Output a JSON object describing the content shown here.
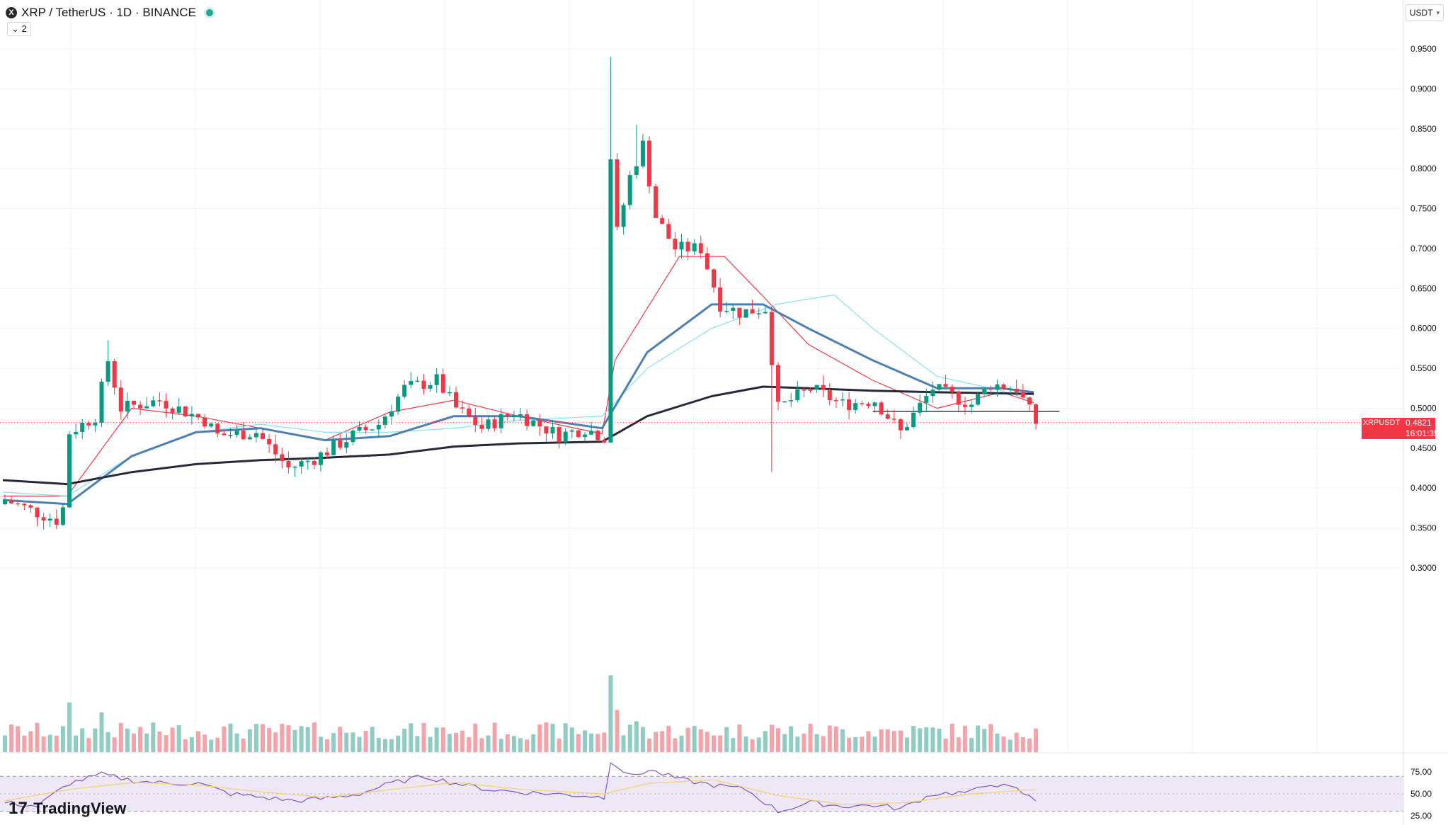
{
  "header": {
    "symbol_logo": "X",
    "title": "XRP / TetherUS · 1D · BINANCE",
    "status_color": "#26a69a",
    "indicator_count": "2"
  },
  "currency_button": {
    "label": "USDT",
    "icon": "chevron-down-icon"
  },
  "price_tag": {
    "symbol": "XRPUSDT",
    "price": "0.4821",
    "countdown": "16:01:35",
    "color": "#f23645"
  },
  "watermark": {
    "text": "TradingView",
    "icon": "tradingview-logo-icon"
  },
  "colors": {
    "up": "#089981",
    "down": "#f23645",
    "vol_up": "#8fcdc2",
    "vol_down": "#f5a3a8",
    "ma_red": "#f23645",
    "ma_cyan": "#7fe3ec",
    "ma_blue": "#4a80b3",
    "ma_black": "#252a3a",
    "rsi_line": "#7e57c2",
    "rsi_ma": "#f7d264",
    "rsi_band": "#ede7f6"
  },
  "chart_data": {
    "type": "candlestick",
    "price_axis": {
      "ticks": [
        "0.9500",
        "0.9000",
        "0.8500",
        "0.8000",
        "0.7500",
        "0.7000",
        "0.6500",
        "0.6000",
        "0.5500",
        "0.5000",
        "0.4500",
        "0.4000",
        "0.3500",
        "0.3000"
      ],
      "min": 0.3,
      "max": 0.95
    },
    "rsi_axis": {
      "ticks": [
        "75.00",
        "50.00",
        "25.00"
      ],
      "upper": 70,
      "lower": 30,
      "mid": 50
    },
    "horizontal_line": 0.496,
    "current_price": 0.4821,
    "anchors": [
      {
        "i": 0,
        "p": 0.385
      },
      {
        "i": 8,
        "p": 0.36
      },
      {
        "i": 9,
        "p": 0.375
      },
      {
        "i": 10,
        "p": 0.47
      },
      {
        "i": 14,
        "p": 0.49
      },
      {
        "i": 16,
        "p": 0.56
      },
      {
        "i": 18,
        "p": 0.5
      },
      {
        "i": 24,
        "p": 0.51
      },
      {
        "i": 31,
        "p": 0.485
      },
      {
        "i": 33,
        "p": 0.466
      },
      {
        "i": 39,
        "p": 0.47
      },
      {
        "i": 44,
        "p": 0.425
      },
      {
        "i": 48,
        "p": 0.437
      },
      {
        "i": 54,
        "p": 0.466
      },
      {
        "i": 58,
        "p": 0.48
      },
      {
        "i": 62,
        "p": 0.525
      },
      {
        "i": 67,
        "p": 0.535
      },
      {
        "i": 70,
        "p": 0.5
      },
      {
        "i": 74,
        "p": 0.475
      },
      {
        "i": 79,
        "p": 0.495
      },
      {
        "i": 86,
        "p": 0.466
      },
      {
        "i": 90,
        "p": 0.475
      },
      {
        "i": 93,
        "p": 0.464
      },
      {
        "i": 94,
        "p": 0.815
      },
      {
        "i": 95,
        "p": 0.72
      },
      {
        "i": 97,
        "p": 0.79
      },
      {
        "i": 99,
        "p": 0.83
      },
      {
        "i": 101,
        "p": 0.74
      },
      {
        "i": 104,
        "p": 0.7
      },
      {
        "i": 108,
        "p": 0.7
      },
      {
        "i": 111,
        "p": 0.63
      },
      {
        "i": 114,
        "p": 0.62
      },
      {
        "i": 118,
        "p": 0.625
      },
      {
        "i": 120,
        "p": 0.5
      },
      {
        "i": 125,
        "p": 0.525
      },
      {
        "i": 130,
        "p": 0.505
      },
      {
        "i": 135,
        "p": 0.51
      },
      {
        "i": 139,
        "p": 0.47
      },
      {
        "i": 144,
        "p": 0.525
      },
      {
        "i": 150,
        "p": 0.505
      },
      {
        "i": 153,
        "p": 0.53
      },
      {
        "i": 157,
        "p": 0.525
      },
      {
        "i": 160,
        "p": 0.482
      }
    ],
    "spikes": [
      {
        "i": 94,
        "high": 0.94,
        "low": 0.46
      },
      {
        "i": 98,
        "high": 0.855
      },
      {
        "i": 119,
        "low": 0.42
      },
      {
        "i": 16,
        "high": 0.585
      }
    ],
    "volume_spikes": [
      {
        "i": 10,
        "v": 1.0
      },
      {
        "i": 94,
        "v": 1.55
      },
      {
        "i": 95,
        "v": 0.85
      },
      {
        "i": 98,
        "v": 0.62
      },
      {
        "i": 15,
        "v": 0.8
      },
      {
        "i": 119,
        "v": 0.55
      }
    ],
    "moving_averages": [
      {
        "color": "ma_red",
        "points": [
          [
            0,
            0.39
          ],
          [
            10,
            0.39
          ],
          [
            20,
            0.5
          ],
          [
            30,
            0.49
          ],
          [
            40,
            0.475
          ],
          [
            50,
            0.46
          ],
          [
            60,
            0.495
          ],
          [
            70,
            0.51
          ],
          [
            80,
            0.49
          ],
          [
            93,
            0.468
          ],
          [
            95,
            0.56
          ],
          [
            105,
            0.69
          ],
          [
            112,
            0.69
          ],
          [
            118,
            0.64
          ],
          [
            125,
            0.58
          ],
          [
            135,
            0.535
          ],
          [
            145,
            0.5
          ],
          [
            155,
            0.52
          ],
          [
            160,
            0.507
          ]
        ]
      },
      {
        "color": "ma_cyan",
        "points": [
          [
            0,
            0.395
          ],
          [
            10,
            0.39
          ],
          [
            20,
            0.44
          ],
          [
            30,
            0.47
          ],
          [
            40,
            0.48
          ],
          [
            50,
            0.47
          ],
          [
            60,
            0.47
          ],
          [
            70,
            0.475
          ],
          [
            80,
            0.485
          ],
          [
            93,
            0.49
          ],
          [
            100,
            0.55
          ],
          [
            110,
            0.6
          ],
          [
            120,
            0.63
          ],
          [
            129,
            0.642
          ],
          [
            135,
            0.6
          ],
          [
            145,
            0.54
          ],
          [
            155,
            0.522
          ],
          [
            160,
            0.51
          ]
        ]
      },
      {
        "color": "ma_blue",
        "points": [
          [
            0,
            0.385
          ],
          [
            10,
            0.38
          ],
          [
            20,
            0.44
          ],
          [
            30,
            0.47
          ],
          [
            40,
            0.475
          ],
          [
            50,
            0.46
          ],
          [
            60,
            0.465
          ],
          [
            70,
            0.49
          ],
          [
            80,
            0.49
          ],
          [
            93,
            0.475
          ],
          [
            100,
            0.57
          ],
          [
            110,
            0.63
          ],
          [
            118,
            0.63
          ],
          [
            125,
            0.6
          ],
          [
            135,
            0.56
          ],
          [
            145,
            0.525
          ],
          [
            155,
            0.525
          ],
          [
            160,
            0.52
          ]
        ]
      },
      {
        "color": "ma_black",
        "points": [
          [
            0,
            0.41
          ],
          [
            10,
            0.405
          ],
          [
            20,
            0.42
          ],
          [
            30,
            0.43
          ],
          [
            40,
            0.435
          ],
          [
            50,
            0.438
          ],
          [
            60,
            0.442
          ],
          [
            70,
            0.452
          ],
          [
            80,
            0.456
          ],
          [
            93,
            0.458
          ],
          [
            100,
            0.49
          ],
          [
            110,
            0.515
          ],
          [
            118,
            0.527
          ],
          [
            125,
            0.525
          ],
          [
            135,
            0.522
          ],
          [
            145,
            0.52
          ],
          [
            160,
            0.518
          ]
        ]
      }
    ],
    "rsi_points": [
      [
        0,
        40
      ],
      [
        5,
        36
      ],
      [
        10,
        62
      ],
      [
        15,
        72
      ],
      [
        20,
        65
      ],
      [
        25,
        62
      ],
      [
        30,
        62
      ],
      [
        35,
        50
      ],
      [
        40,
        46
      ],
      [
        45,
        42
      ],
      [
        50,
        45
      ],
      [
        55,
        50
      ],
      [
        60,
        62
      ],
      [
        65,
        70
      ],
      [
        70,
        62
      ],
      [
        75,
        55
      ],
      [
        80,
        52
      ],
      [
        85,
        50
      ],
      [
        90,
        48
      ],
      [
        93,
        46
      ],
      [
        94,
        88
      ],
      [
        97,
        70
      ],
      [
        100,
        77
      ],
      [
        105,
        66
      ],
      [
        110,
        60
      ],
      [
        115,
        55
      ],
      [
        120,
        30
      ],
      [
        125,
        40
      ],
      [
        130,
        36
      ],
      [
        135,
        37
      ],
      [
        139,
        33
      ],
      [
        144,
        50
      ],
      [
        150,
        52
      ],
      [
        153,
        62
      ],
      [
        157,
        55
      ],
      [
        160,
        42
      ]
    ],
    "rsi_ma_points": [
      [
        0,
        42
      ],
      [
        10,
        55
      ],
      [
        20,
        63
      ],
      [
        30,
        60
      ],
      [
        40,
        52
      ],
      [
        50,
        46
      ],
      [
        60,
        55
      ],
      [
        70,
        63
      ],
      [
        80,
        55
      ],
      [
        93,
        50
      ],
      [
        100,
        62
      ],
      [
        110,
        66
      ],
      [
        120,
        48
      ],
      [
        130,
        38
      ],
      [
        140,
        40
      ],
      [
        150,
        50
      ],
      [
        160,
        55
      ]
    ],
    "bars_count": 161
  }
}
